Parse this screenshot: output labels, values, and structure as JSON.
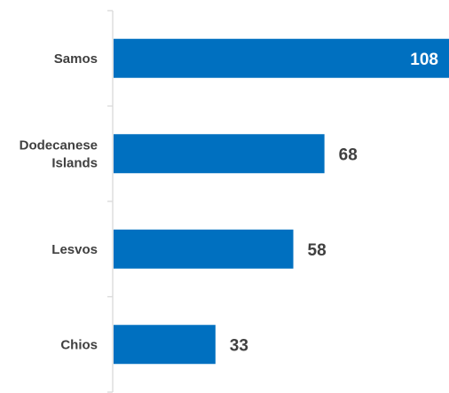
{
  "chart_data": {
    "type": "bar",
    "orientation": "horizontal",
    "categories": [
      [
        "Samos"
      ],
      [
        "Dodecanese",
        "Islands"
      ],
      [
        "Lesvos"
      ],
      [
        "Chios"
      ]
    ],
    "values": [
      108,
      68,
      58,
      33
    ],
    "xlim": [
      0,
      108
    ],
    "grid": false,
    "legend": "none",
    "title": "",
    "xlabel": "",
    "ylabel": ""
  },
  "colors": {
    "bar": "#0070C0",
    "axis": "#D9D9D9",
    "category_text": "#404040",
    "value_text_outside": "#404040",
    "value_text_inside": "#ffffff"
  }
}
